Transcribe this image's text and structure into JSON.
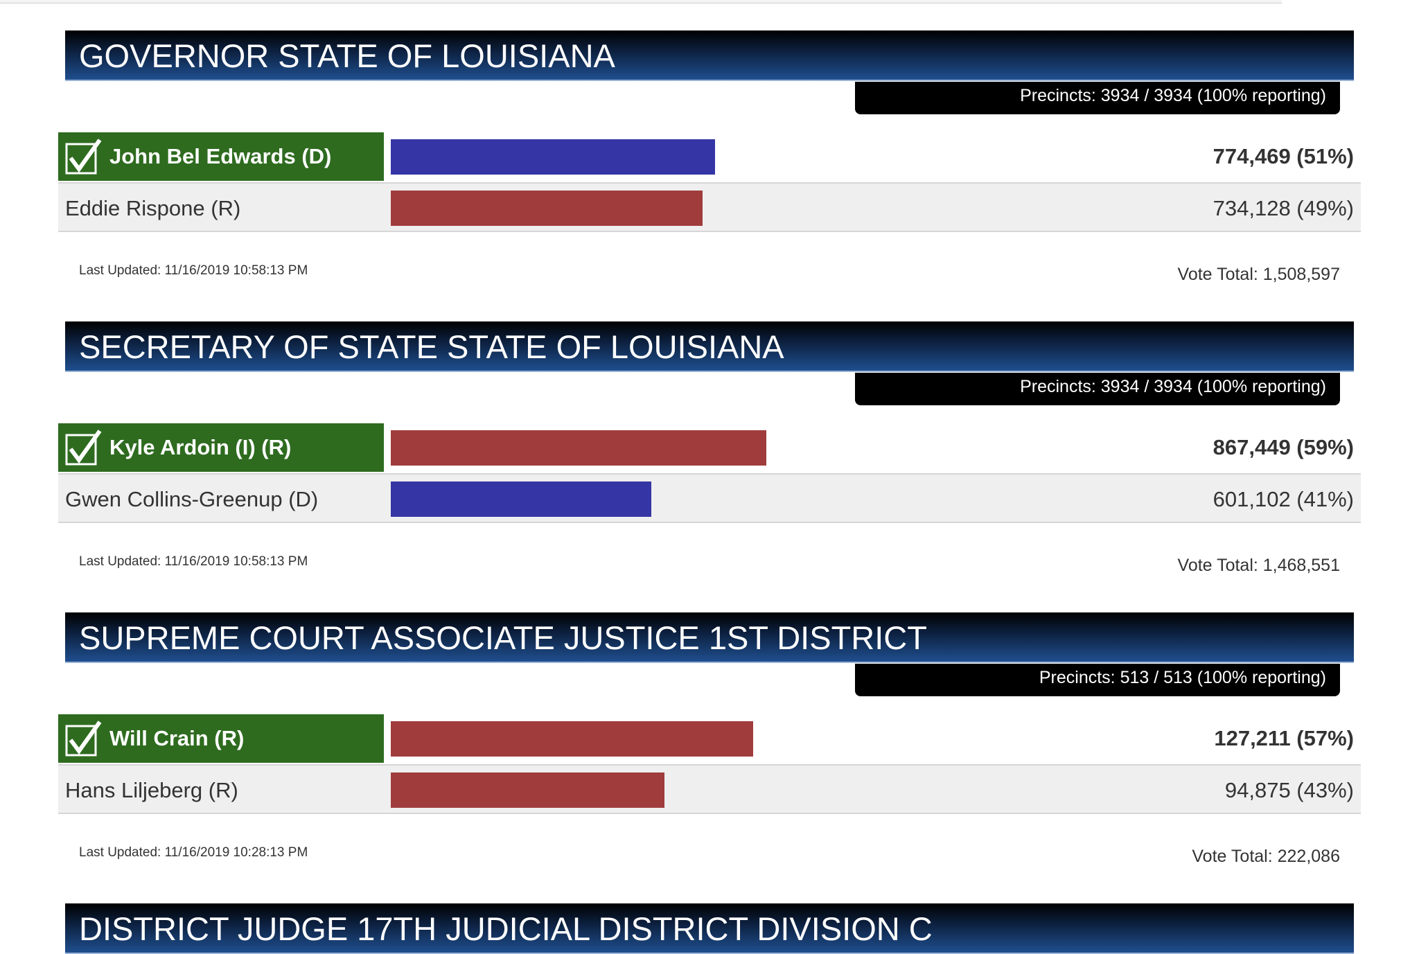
{
  "races": [
    {
      "title": "GOVERNOR STATE OF LOUISIANA",
      "precincts": "Precincts: 3934 / 3934 (100% reporting)",
      "candidates": [
        {
          "name": "John Bel Edwards (D)",
          "result": "774,469 (51%)",
          "percent": 51,
          "color": "#3535a5"
        },
        {
          "name": "Eddie Rispone (R)",
          "result": "734,128 (49%)",
          "percent": 49,
          "color": "#a03c3c"
        }
      ],
      "last_updated": "Last Updated: 11/16/2019 10:58:13 PM",
      "vote_total": "Vote Total: 1,508,597"
    },
    {
      "title": "SECRETARY OF STATE STATE OF LOUISIANA",
      "precincts": "Precincts: 3934 / 3934 (100% reporting)",
      "candidates": [
        {
          "name": "Kyle Ardoin (I) (R)",
          "result": "867,449 (59%)",
          "percent": 59,
          "color": "#a03c3c"
        },
        {
          "name": "Gwen Collins-Greenup (D)",
          "result": "601,102 (41%)",
          "percent": 41,
          "color": "#3535a5"
        }
      ],
      "last_updated": "Last Updated: 11/16/2019 10:58:13 PM",
      "vote_total": "Vote Total: 1,468,551"
    },
    {
      "title": "SUPREME COURT ASSOCIATE JUSTICE 1ST DISTRICT",
      "precincts": "Precincts: 513 / 513 (100% reporting)",
      "candidates": [
        {
          "name": "Will Crain (R)",
          "result": "127,211 (57%)",
          "percent": 57,
          "color": "#a03c3c"
        },
        {
          "name": "Hans Liljeberg (R)",
          "result": "94,875 (43%)",
          "percent": 43,
          "color": "#a03c3c"
        }
      ],
      "last_updated": "Last Updated: 11/16/2019 10:28:13 PM",
      "vote_total": "Vote Total: 222,086"
    },
    {
      "title": "DISTRICT JUDGE 17TH JUDICIAL DISTRICT DIVISION C"
    }
  ]
}
